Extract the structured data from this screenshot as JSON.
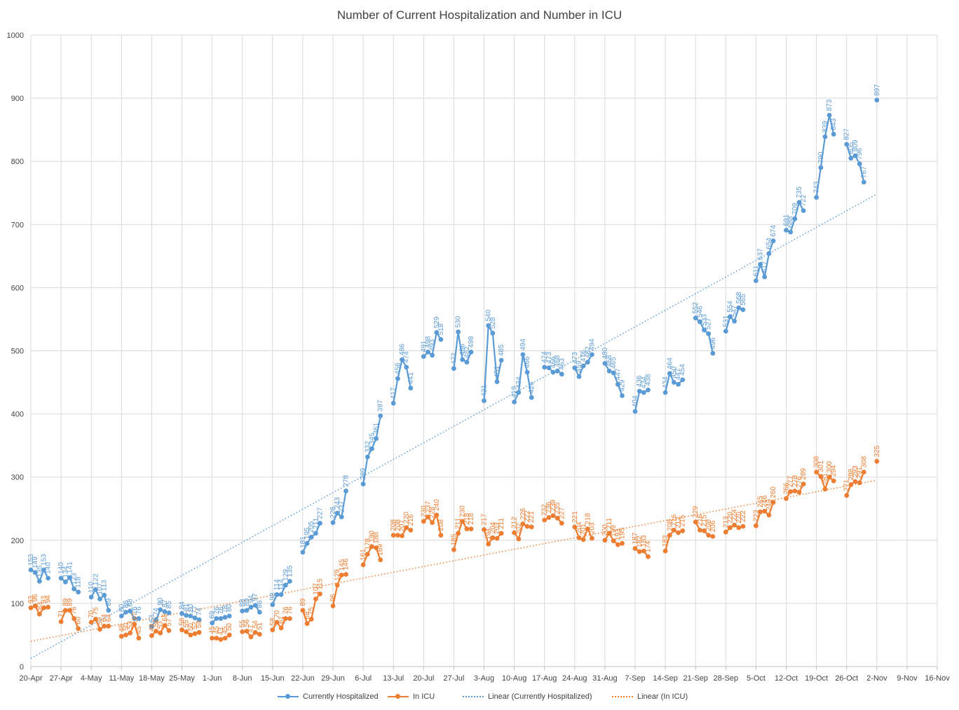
{
  "chart_data": {
    "type": "line",
    "title": "Number of Current Hospitalization and Number in  ICU",
    "xlabel": "",
    "ylabel": "",
    "ylim": [
      0,
      1000
    ],
    "yticks": [
      0,
      100,
      200,
      300,
      400,
      500,
      600,
      700,
      800,
      900,
      1000
    ],
    "xlim": [
      "2020-04-20",
      "2020-11-16"
    ],
    "xticks": [
      {
        "date": "2020-04-20",
        "label": "20-Apr"
      },
      {
        "date": "2020-04-27",
        "label": "27-Apr"
      },
      {
        "date": "2020-05-04",
        "label": "4-May"
      },
      {
        "date": "2020-05-11",
        "label": "11-May"
      },
      {
        "date": "2020-05-18",
        "label": "18-May"
      },
      {
        "date": "2020-05-25",
        "label": "25-May"
      },
      {
        "date": "2020-06-01",
        "label": "1-Jun"
      },
      {
        "date": "2020-06-08",
        "label": "8-Jun"
      },
      {
        "date": "2020-06-15",
        "label": "15-Jun"
      },
      {
        "date": "2020-06-22",
        "label": "22-Jun"
      },
      {
        "date": "2020-06-29",
        "label": "29-Jun"
      },
      {
        "date": "2020-07-06",
        "label": "6-Jul"
      },
      {
        "date": "2020-07-13",
        "label": "13-Jul"
      },
      {
        "date": "2020-07-20",
        "label": "20-Jul"
      },
      {
        "date": "2020-07-27",
        "label": "27-Jul"
      },
      {
        "date": "2020-08-03",
        "label": "3-Aug"
      },
      {
        "date": "2020-08-10",
        "label": "10-Aug"
      },
      {
        "date": "2020-08-17",
        "label": "17-Aug"
      },
      {
        "date": "2020-08-24",
        "label": "24-Aug"
      },
      {
        "date": "2020-08-31",
        "label": "31-Aug"
      },
      {
        "date": "2020-09-07",
        "label": "7-Sep"
      },
      {
        "date": "2020-09-14",
        "label": "14-Sep"
      },
      {
        "date": "2020-09-21",
        "label": "21-Sep"
      },
      {
        "date": "2020-09-28",
        "label": "28-Sep"
      },
      {
        "date": "2020-10-05",
        "label": "5-Oct"
      },
      {
        "date": "2020-10-12",
        "label": "12-Oct"
      },
      {
        "date": "2020-10-19",
        "label": "19-Oct"
      },
      {
        "date": "2020-10-26",
        "label": "26-Oct"
      },
      {
        "date": "2020-11-02",
        "label": "2-Nov"
      },
      {
        "date": "2020-11-09",
        "label": "9-Nov"
      },
      {
        "date": "2020-11-16",
        "label": "16-Nov"
      }
    ],
    "grid": true,
    "legend_position": "bottom",
    "series": [
      {
        "name": "Currently Hospitalized",
        "color": "#5b9bd5",
        "segments": [
          {
            "start": "2020-04-20",
            "values": [
              153,
              149,
              135,
              153,
              140
            ]
          },
          {
            "start": "2020-04-27",
            "values": [
              140,
              134,
              141,
              123,
              118
            ]
          },
          {
            "start": "2020-05-04",
            "values": [
              110,
              122,
              107,
              113,
              89
            ]
          },
          {
            "start": "2020-05-11",
            "values": [
              80,
              86,
              88,
              76,
              76
            ]
          },
          {
            "start": "2020-05-18",
            "values": [
              63,
              74,
              90,
              87,
              85
            ]
          },
          {
            "start": "2020-05-25",
            "values": [
              84,
              81,
              80,
              77,
              74
            ]
          },
          {
            "start": "2020-06-01",
            "values": [
              69,
              76,
              76,
              78,
              80
            ]
          },
          {
            "start": "2020-06-08",
            "values": [
              88,
              89,
              94,
              97,
              86
            ]
          },
          {
            "start": "2020-06-15",
            "values": [
              98,
              114,
              114,
              129,
              135
            ]
          },
          {
            "start": "2020-06-22",
            "values": [
              181,
              195,
              205,
              211,
              227
            ]
          },
          {
            "start": "2020-06-29",
            "values": [
              228,
              243,
              237,
              278
            ]
          },
          {
            "start": "2020-07-06",
            "values": [
              289,
              332,
              345,
              361,
              397
            ]
          },
          {
            "start": "2020-07-13",
            "values": [
              417,
              456,
              486,
              474,
              441
            ]
          },
          {
            "start": "2020-07-20",
            "values": [
              491,
              498,
              493,
              529,
              518
            ]
          },
          {
            "start": "2020-07-27",
            "values": [
              472,
              530,
              486,
              482,
              498
            ]
          },
          {
            "start": "2020-08-03",
            "values": [
              421,
              540,
              528,
              451,
              485
            ]
          },
          {
            "start": "2020-08-10",
            "values": [
              419,
              434,
              494,
              466,
              426
            ]
          },
          {
            "start": "2020-08-17",
            "values": [
              474,
              473,
              466,
              468,
              463
            ]
          },
          {
            "start": "2020-08-24",
            "values": [
              473,
              459,
              476,
              482,
              494
            ]
          },
          {
            "start": "2020-08-31",
            "values": [
              480,
              468,
              465,
              447,
              429
            ]
          },
          {
            "start": "2020-09-07",
            "values": [
              404,
              436,
              434,
              438
            ]
          },
          {
            "start": "2020-09-14",
            "values": [
              434,
              464,
              450,
              447,
              454
            ]
          },
          {
            "start": "2020-09-21",
            "values": [
              552,
              546,
              533,
              527,
              496
            ]
          },
          {
            "start": "2020-09-28",
            "values": [
              531,
              554,
              547,
              568,
              565
            ]
          },
          {
            "start": "2020-10-05",
            "values": [
              611,
              637,
              617,
              654,
              674
            ]
          },
          {
            "start": "2020-10-12",
            "values": [
              691,
              688,
              709,
              735,
              722
            ]
          },
          {
            "start": "2020-10-19",
            "values": [
              743,
              790,
              839,
              873,
              843
            ]
          },
          {
            "start": "2020-10-26",
            "values": [
              827,
              805,
              809,
              796,
              767
            ]
          },
          {
            "start": "2020-11-02",
            "values": [
              897
            ]
          }
        ],
        "trendline": {
          "name": "Linear (Currently Hospitalized)",
          "start": 13,
          "end": 748
        }
      },
      {
        "name": "In ICU",
        "color": "#ed7d31",
        "segments": [
          {
            "start": "2020-04-20",
            "values": [
              93,
              96,
              83,
              93,
              94
            ]
          },
          {
            "start": "2020-04-27",
            "values": [
              71,
              89,
              89,
              76,
              60
            ]
          },
          {
            "start": "2020-05-04",
            "values": [
              70,
              75,
              59,
              64,
              64
            ]
          },
          {
            "start": "2020-05-11",
            "values": [
              48,
              50,
              53,
              67,
              45
            ]
          },
          {
            "start": "2020-05-18",
            "values": [
              49,
              56,
              53,
              65,
              57
            ]
          },
          {
            "start": "2020-05-25",
            "values": [
              58,
              55,
              50,
              52,
              54
            ]
          },
          {
            "start": "2020-06-01",
            "values": [
              45,
              45,
              43,
              45,
              50
            ]
          },
          {
            "start": "2020-06-08",
            "values": [
              55,
              56,
              47,
              54,
              51
            ]
          },
          {
            "start": "2020-06-15",
            "values": [
              58,
              70,
              61,
              76,
              76
            ]
          },
          {
            "start": "2020-06-22",
            "values": [
              89,
              68,
              75,
              107,
              115
            ]
          },
          {
            "start": "2020-06-29",
            "values": [
              96,
              129,
              145,
              146
            ]
          },
          {
            "start": "2020-07-06",
            "values": [
              161,
              178,
              190,
              188,
              169
            ]
          },
          {
            "start": "2020-07-13",
            "values": [
              208,
              208,
              207,
              220,
              216
            ]
          },
          {
            "start": "2020-07-20",
            "values": [
              230,
              237,
              228,
              240,
              208
            ]
          },
          {
            "start": "2020-07-27",
            "values": [
              185,
              211,
              230,
              218,
              218
            ]
          },
          {
            "start": "2020-08-03",
            "values": [
              217,
              194,
              204,
              203,
              211
            ]
          },
          {
            "start": "2020-08-10",
            "values": [
              212,
              202,
              226,
              222,
              221
            ]
          },
          {
            "start": "2020-08-17",
            "values": [
              232,
              236,
              239,
              235,
              227
            ]
          },
          {
            "start": "2020-08-24",
            "values": [
              221,
              204,
              201,
              218,
              203
            ]
          },
          {
            "start": "2020-08-31",
            "values": [
              200,
              211,
              199,
              193,
              195
            ]
          },
          {
            "start": "2020-09-07",
            "values": [
              187,
              182,
              183,
              174
            ]
          },
          {
            "start": "2020-09-14",
            "values": [
              183,
              208,
              216,
              212,
              215
            ]
          },
          {
            "start": "2020-09-21",
            "values": [
              229,
              216,
              215,
              208,
              206
            ]
          },
          {
            "start": "2020-09-28",
            "values": [
              213,
              220,
              224,
              220,
              222
            ]
          },
          {
            "start": "2020-10-05",
            "values": [
              223,
              245,
              246,
              240,
              260
            ]
          },
          {
            "start": "2020-10-12",
            "values": [
              266,
              277,
              278,
              276,
              289
            ]
          },
          {
            "start": "2020-10-19",
            "values": [
              308,
              301,
              281,
              300,
              294
            ]
          },
          {
            "start": "2020-10-26",
            "values": [
              271,
              288,
              293,
              291,
              308
            ]
          },
          {
            "start": "2020-11-02",
            "values": [
              325
            ]
          }
        ],
        "trendline": {
          "name": "Linear (In ICU)",
          "start": 40,
          "end": 295
        }
      }
    ]
  }
}
